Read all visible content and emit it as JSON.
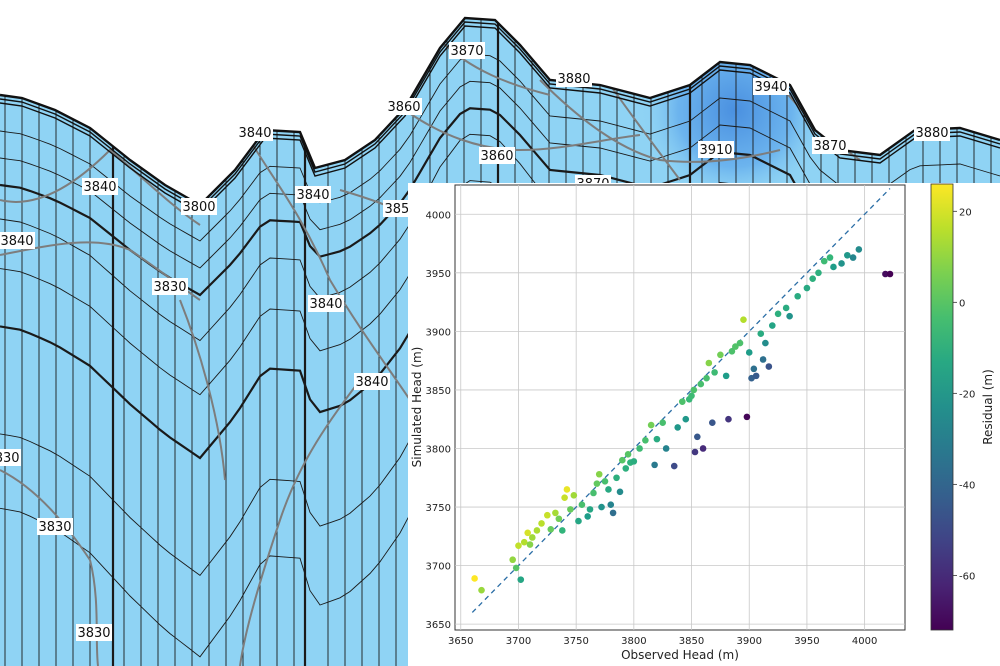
{
  "colors": {
    "fill": "#8fd3f4",
    "fill_dark": "#5aa6e8",
    "grid_line": "#1a1a1a",
    "contour": "#7d7d7d",
    "reference_line": "#2b6ea6"
  },
  "background": {
    "contour_labels": [
      "3870",
      "3880",
      "3940",
      "3860",
      "3840",
      "3860",
      "3910",
      "3870",
      "3880",
      "3840",
      "3800",
      "3840",
      "3850",
      "3870",
      "3840",
      "3830",
      "3840",
      "3840",
      "3830",
      "3830",
      "3830",
      "3880",
      "3860",
      "3850",
      "3840",
      "3830"
    ]
  },
  "chart_data": {
    "type": "scatter",
    "title": "",
    "xlabel": "Observed Head (m)",
    "ylabel": "Simulated Head (m)",
    "xlim": [
      3645,
      4035
    ],
    "ylim": [
      3645,
      4025
    ],
    "xticks": [
      3650,
      3700,
      3750,
      3800,
      3850,
      3900,
      3950,
      4000
    ],
    "yticks": [
      3650,
      3700,
      3750,
      3800,
      3850,
      3900,
      3950,
      4000
    ],
    "grid": true,
    "reference_line": {
      "from": [
        3660,
        3660
      ],
      "to": [
        4022,
        4022
      ],
      "style": "dashed"
    },
    "colorbar": {
      "label": "Residual (m)",
      "range": [
        -72,
        26
      ],
      "ticks": [
        20,
        0,
        -20,
        -40,
        -60
      ],
      "colormap": "viridis"
    },
    "points": [
      {
        "x": 3662,
        "y": 3689
      },
      {
        "x": 3668,
        "y": 3679
      },
      {
        "x": 3695,
        "y": 3705
      },
      {
        "x": 3698,
        "y": 3698
      },
      {
        "x": 3702,
        "y": 3688
      },
      {
        "x": 3700,
        "y": 3717
      },
      {
        "x": 3705,
        "y": 3720
      },
      {
        "x": 3708,
        "y": 3728
      },
      {
        "x": 3712,
        "y": 3724
      },
      {
        "x": 3710,
        "y": 3718
      },
      {
        "x": 3716,
        "y": 3730
      },
      {
        "x": 3720,
        "y": 3736
      },
      {
        "x": 3725,
        "y": 3743
      },
      {
        "x": 3728,
        "y": 3731
      },
      {
        "x": 3732,
        "y": 3745
      },
      {
        "x": 3735,
        "y": 3740
      },
      {
        "x": 3738,
        "y": 3730
      },
      {
        "x": 3740,
        "y": 3758
      },
      {
        "x": 3742,
        "y": 3765
      },
      {
        "x": 3745,
        "y": 3748
      },
      {
        "x": 3748,
        "y": 3760
      },
      {
        "x": 3752,
        "y": 3738
      },
      {
        "x": 3755,
        "y": 3752
      },
      {
        "x": 3760,
        "y": 3742
      },
      {
        "x": 3762,
        "y": 3748
      },
      {
        "x": 3765,
        "y": 3762
      },
      {
        "x": 3768,
        "y": 3770
      },
      {
        "x": 3770,
        "y": 3778
      },
      {
        "x": 3772,
        "y": 3750
      },
      {
        "x": 3775,
        "y": 3772
      },
      {
        "x": 3778,
        "y": 3765
      },
      {
        "x": 3780,
        "y": 3752
      },
      {
        "x": 3782,
        "y": 3745
      },
      {
        "x": 3785,
        "y": 3775
      },
      {
        "x": 3788,
        "y": 3763
      },
      {
        "x": 3790,
        "y": 3790
      },
      {
        "x": 3793,
        "y": 3783
      },
      {
        "x": 3795,
        "y": 3795
      },
      {
        "x": 3797,
        "y": 3788
      },
      {
        "x": 3800,
        "y": 3789
      },
      {
        "x": 3805,
        "y": 3800
      },
      {
        "x": 3810,
        "y": 3807
      },
      {
        "x": 3815,
        "y": 3820
      },
      {
        "x": 3818,
        "y": 3786
      },
      {
        "x": 3820,
        "y": 3808
      },
      {
        "x": 3825,
        "y": 3822
      },
      {
        "x": 3828,
        "y": 3800
      },
      {
        "x": 3835,
        "y": 3785
      },
      {
        "x": 3838,
        "y": 3818
      },
      {
        "x": 3842,
        "y": 3840
      },
      {
        "x": 3845,
        "y": 3825
      },
      {
        "x": 3848,
        "y": 3842
      },
      {
        "x": 3850,
        "y": 3845
      },
      {
        "x": 3852,
        "y": 3850
      },
      {
        "x": 3853,
        "y": 3797
      },
      {
        "x": 3855,
        "y": 3810
      },
      {
        "x": 3858,
        "y": 3855
      },
      {
        "x": 3860,
        "y": 3800
      },
      {
        "x": 3863,
        "y": 3860
      },
      {
        "x": 3865,
        "y": 3873
      },
      {
        "x": 3868,
        "y": 3822
      },
      {
        "x": 3870,
        "y": 3865
      },
      {
        "x": 3875,
        "y": 3880
      },
      {
        "x": 3880,
        "y": 3862
      },
      {
        "x": 3882,
        "y": 3825
      },
      {
        "x": 3885,
        "y": 3883
      },
      {
        "x": 3888,
        "y": 3887
      },
      {
        "x": 3892,
        "y": 3890
      },
      {
        "x": 3895,
        "y": 3910
      },
      {
        "x": 3898,
        "y": 3827
      },
      {
        "x": 3900,
        "y": 3882
      },
      {
        "x": 3902,
        "y": 3860
      },
      {
        "x": 3904,
        "y": 3868
      },
      {
        "x": 3906,
        "y": 3862
      },
      {
        "x": 3910,
        "y": 3898
      },
      {
        "x": 3912,
        "y": 3876
      },
      {
        "x": 3914,
        "y": 3890
      },
      {
        "x": 3917,
        "y": 3870
      },
      {
        "x": 3920,
        "y": 3905
      },
      {
        "x": 3925,
        "y": 3915
      },
      {
        "x": 3932,
        "y": 3920
      },
      {
        "x": 3935,
        "y": 3913
      },
      {
        "x": 3942,
        "y": 3930
      },
      {
        "x": 3950,
        "y": 3937
      },
      {
        "x": 3955,
        "y": 3945
      },
      {
        "x": 3960,
        "y": 3950
      },
      {
        "x": 3965,
        "y": 3960
      },
      {
        "x": 3970,
        "y": 3963
      },
      {
        "x": 3973,
        "y": 3955
      },
      {
        "x": 3980,
        "y": 3958
      },
      {
        "x": 3985,
        "y": 3965
      },
      {
        "x": 3990,
        "y": 3963
      },
      {
        "x": 3995,
        "y": 3970
      },
      {
        "x": 4018,
        "y": 3949
      },
      {
        "x": 4022,
        "y": 3949
      }
    ]
  }
}
